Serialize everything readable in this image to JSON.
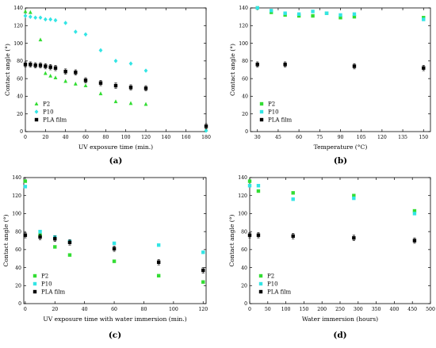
{
  "colors": {
    "P2": "#33dd33",
    "P10": "#33e5e5",
    "PLA film": "#000000"
  },
  "chart_data": [
    {
      "panel_label": "(a)",
      "type": "scatter",
      "xlabel": "UV exposure time (min.)",
      "ylabel": "Contact angle (°)",
      "xlim": [
        0,
        180
      ],
      "ylim": [
        0,
        140
      ],
      "xticks": [
        0,
        20,
        40,
        60,
        80,
        100,
        120,
        140,
        160,
        180
      ],
      "yticks": [
        0,
        20,
        40,
        60,
        80,
        100,
        120,
        140
      ],
      "legend_position": "bottom-left",
      "series": [
        {
          "name": "P2",
          "marker": "triangle",
          "x": [
            0,
            5,
            15,
            20,
            25,
            30,
            40,
            50,
            60,
            75,
            90,
            105,
            120,
            180
          ],
          "y": [
            136,
            135,
            104,
            66,
            63,
            61,
            57,
            54,
            52,
            43,
            34,
            32,
            31,
            2
          ]
        },
        {
          "name": "P10",
          "marker": "diamond",
          "x": [
            0,
            5,
            10,
            15,
            20,
            25,
            30,
            40,
            50,
            60,
            75,
            90,
            105,
            120,
            180
          ],
          "y": [
            131,
            130,
            129,
            129,
            127,
            127,
            126,
            123,
            113,
            110,
            92,
            80,
            77,
            69,
            1
          ]
        },
        {
          "name": "PLA film",
          "marker": "square",
          "x": [
            0,
            5,
            10,
            15,
            20,
            25,
            30,
            40,
            50,
            60,
            75,
            90,
            105,
            120,
            180
          ],
          "y": [
            76,
            76,
            75,
            75,
            74,
            73,
            72,
            68,
            67,
            58,
            55,
            52,
            50,
            49,
            6
          ]
        }
      ]
    },
    {
      "panel_label": "(b)",
      "type": "scatter",
      "xlabel": "Temperature (°C)",
      "ylabel": "Contact angle (°)",
      "xlim": [
        25,
        155
      ],
      "ylim": [
        0,
        140
      ],
      "xticks": [
        30,
        45,
        60,
        75,
        90,
        105,
        120,
        135,
        150
      ],
      "yticks": [
        0,
        20,
        40,
        60,
        80,
        100,
        120,
        140
      ],
      "legend_position": "bottom-left",
      "series": [
        {
          "name": "P2",
          "marker": "square",
          "x": [
            30,
            40,
            50,
            60,
            70,
            80,
            90,
            100,
            150
          ],
          "y": [
            140,
            135,
            132,
            131,
            131,
            134,
            129,
            130,
            129
          ]
        },
        {
          "name": "P10",
          "marker": "square",
          "x": [
            30,
            40,
            50,
            60,
            70,
            80,
            90,
            100,
            150
          ],
          "y": [
            140,
            137,
            134,
            133,
            136,
            134,
            132,
            133,
            127
          ]
        },
        {
          "name": "PLA film",
          "marker": "square",
          "x": [
            30,
            50,
            100,
            150
          ],
          "y": [
            76,
            76,
            74,
            72
          ]
        }
      ]
    },
    {
      "panel_label": "(c)",
      "type": "scatter",
      "xlabel": "UV exposure time with water immersion (min.)",
      "ylabel": "Contact angle (°)",
      "xlim": [
        -1,
        122
      ],
      "ylim": [
        0,
        140
      ],
      "xticks": [
        0,
        20,
        40,
        60,
        80,
        100,
        120
      ],
      "yticks": [
        0,
        20,
        40,
        60,
        80,
        100,
        120,
        140
      ],
      "legend_position": "bottom-left",
      "series": [
        {
          "name": "P2",
          "marker": "square",
          "x": [
            0,
            10,
            20,
            30,
            60,
            90,
            120
          ],
          "y": [
            136,
            76,
            63,
            54,
            47,
            31,
            24
          ]
        },
        {
          "name": "P10",
          "marker": "square",
          "x": [
            0,
            10,
            20,
            30,
            60,
            90,
            120
          ],
          "y": [
            130,
            80,
            74,
            69,
            67,
            65,
            57
          ]
        },
        {
          "name": "PLA film",
          "marker": "square",
          "x": [
            0,
            10,
            20,
            30,
            60,
            90,
            120
          ],
          "y": [
            76,
            74,
            72,
            68,
            61,
            46,
            37
          ]
        }
      ]
    },
    {
      "panel_label": "(d)",
      "type": "scatter",
      "xlabel": "Water immersion (hours)",
      "ylabel": "Contact angle (°)",
      "xlim": [
        0,
        500
      ],
      "ylim": [
        0,
        140
      ],
      "xticks": [
        0,
        50,
        100,
        150,
        200,
        250,
        300,
        350,
        400,
        450,
        500
      ],
      "yticks": [
        0,
        20,
        40,
        60,
        80,
        100,
        120,
        140
      ],
      "legend_position": "bottom-left",
      "series": [
        {
          "name": "P2",
          "marker": "square",
          "x": [
            0,
            24,
            120,
            288,
            456
          ],
          "y": [
            136,
            125,
            123,
            120,
            103
          ]
        },
        {
          "name": "P10",
          "marker": "square",
          "x": [
            0,
            24,
            120,
            288,
            456
          ],
          "y": [
            131,
            131,
            116,
            117,
            100
          ]
        },
        {
          "name": "PLA film",
          "marker": "square",
          "x": [
            0,
            24,
            120,
            288,
            456
          ],
          "y": [
            76,
            76,
            75,
            73,
            70
          ]
        }
      ]
    }
  ]
}
